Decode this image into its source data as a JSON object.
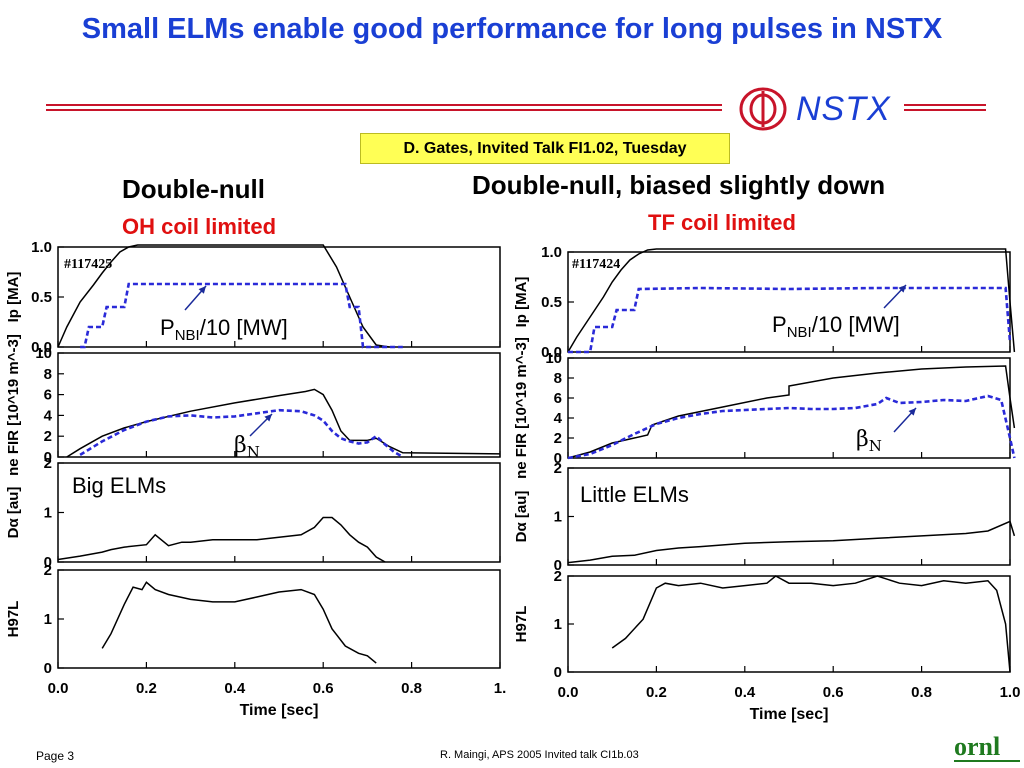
{
  "slide": {
    "title": "Small ELMs enable good performance for long pulses in NSTX",
    "logo_text": "NSTX",
    "citation": "D. Gates, Invited Talk FI1.02, Tuesday",
    "footer_left": "Page 3",
    "footer_center": "R. Maingi, APS 2005  Invited talk CI1b.03",
    "footer_logo": "ornl",
    "accent_color": "#1a3fd4",
    "rule_color": "#c8142a",
    "highlight_color": "#ffff55"
  },
  "left_heading": {
    "line1": "Double-null",
    "line2": "OH coil limited"
  },
  "right_heading": {
    "line1": "Double-null, biased slightly down",
    "line2": "TF coil limited"
  },
  "chart_data": [
    {
      "type": "line",
      "shot": "#117425",
      "xlabel": "Time [sec]",
      "xlim": [
        0,
        1.0
      ],
      "xticks": [
        "0.0",
        "0.2",
        "0.4",
        "0.6",
        "0.8",
        "1."
      ],
      "panels": [
        {
          "ylabel": "Ip [MA]",
          "ylim": [
            0,
            1.0
          ],
          "yticks": [
            "0.0",
            "0.5",
            "1.0"
          ],
          "annotation": "PNBI/10 [MW]",
          "series": [
            {
              "style": "solid",
              "x": [
                0.0,
                0.02,
                0.05,
                0.08,
                0.1,
                0.12,
                0.14,
                0.16,
                0.18,
                0.2,
                0.25,
                0.3,
                0.4,
                0.5,
                0.55,
                0.6,
                0.63,
                0.66,
                0.69,
                0.72,
                0.75
              ],
              "y": [
                0.0,
                0.2,
                0.45,
                0.62,
                0.74,
                0.85,
                0.95,
                1.0,
                1.02,
                1.02,
                1.02,
                1.02,
                1.02,
                1.02,
                1.02,
                1.02,
                0.8,
                0.5,
                0.2,
                0.02,
                0.0
              ]
            },
            {
              "style": "dashed",
              "x": [
                0.05,
                0.06,
                0.07,
                0.1,
                0.11,
                0.15,
                0.16,
                0.64,
                0.65,
                0.66,
                0.68,
                0.69,
                0.7,
                0.78
              ],
              "y": [
                0.0,
                0.0,
                0.2,
                0.2,
                0.4,
                0.4,
                0.63,
                0.63,
                0.63,
                0.4,
                0.4,
                0.0,
                0.0,
                0.0
              ]
            }
          ]
        },
        {
          "ylabel": "ne FIR [10^19 m^-3]",
          "ylim": [
            0,
            10
          ],
          "yticks": [
            "0",
            "2",
            "4",
            "6",
            "8",
            "10"
          ],
          "annotation": "βN",
          "series": [
            {
              "style": "solid",
              "x": [
                0.02,
                0.05,
                0.1,
                0.15,
                0.2,
                0.3,
                0.4,
                0.5,
                0.56,
                0.58,
                0.6,
                0.62,
                0.64,
                0.66,
                0.7,
                0.72,
                0.75,
                0.78,
                1.0
              ],
              "y": [
                0.0,
                0.8,
                2.0,
                2.8,
                3.4,
                4.4,
                5.2,
                5.9,
                6.3,
                6.5,
                6.0,
                4.5,
                2.5,
                1.6,
                1.6,
                1.8,
                1.0,
                0.4,
                0.3
              ]
            },
            {
              "style": "dashed",
              "x": [
                0.05,
                0.1,
                0.15,
                0.2,
                0.25,
                0.3,
                0.35,
                0.4,
                0.45,
                0.5,
                0.55,
                0.58,
                0.6,
                0.62,
                0.64,
                0.66,
                0.68,
                0.7,
                0.72,
                0.74,
                0.76,
                0.78
              ],
              "y": [
                0.2,
                1.5,
                2.6,
                3.4,
                3.9,
                4.0,
                3.8,
                3.9,
                4.2,
                4.5,
                4.4,
                4.0,
                3.5,
                2.5,
                1.8,
                1.5,
                1.3,
                1.4,
                2.0,
                1.2,
                0.5,
                0.0
              ]
            }
          ]
        },
        {
          "ylabel": "Dα [au]",
          "ylim": [
            0,
            2
          ],
          "yticks": [
            "0",
            "1",
            "2"
          ],
          "annotation": "Big ELMs",
          "series": [
            {
              "style": "solid",
              "x": [
                0.0,
                0.05,
                0.1,
                0.12,
                0.15,
                0.2,
                0.22,
                0.25,
                0.28,
                0.3,
                0.35,
                0.4,
                0.45,
                0.5,
                0.55,
                0.58,
                0.6,
                0.62,
                0.64,
                0.66,
                0.68,
                0.7,
                0.72,
                0.74
              ],
              "y": [
                0.05,
                0.12,
                0.2,
                0.25,
                0.3,
                0.35,
                0.55,
                0.33,
                0.4,
                0.4,
                0.45,
                0.45,
                0.45,
                0.5,
                0.55,
                0.7,
                0.9,
                0.9,
                0.75,
                0.55,
                0.4,
                0.3,
                0.1,
                0.0
              ]
            }
          ]
        },
        {
          "ylabel": "H97L",
          "ylim": [
            0,
            2
          ],
          "yticks": [
            "0",
            "1",
            "2"
          ],
          "series": [
            {
              "style": "solid",
              "x": [
                0.1,
                0.12,
                0.15,
                0.17,
                0.19,
                0.2,
                0.22,
                0.25,
                0.3,
                0.35,
                0.4,
                0.45,
                0.5,
                0.55,
                0.58,
                0.6,
                0.62,
                0.65,
                0.68,
                0.7,
                0.72
              ],
              "y": [
                0.4,
                0.7,
                1.3,
                1.65,
                1.6,
                1.75,
                1.6,
                1.5,
                1.4,
                1.35,
                1.35,
                1.45,
                1.55,
                1.6,
                1.5,
                1.2,
                0.8,
                0.45,
                0.3,
                0.25,
                0.1
              ]
            }
          ]
        }
      ]
    },
    {
      "type": "line",
      "shot": "#117424",
      "xlabel": "Time [sec]",
      "xlim": [
        0,
        1.0
      ],
      "xticks": [
        "0.0",
        "0.2",
        "0.4",
        "0.6",
        "0.8",
        "1.0"
      ],
      "panels": [
        {
          "ylabel": "Ip [MA]",
          "ylim": [
            0,
            1.0
          ],
          "yticks": [
            "0.0",
            "0.5",
            "1.0"
          ],
          "annotation": "PNBI/10 [MW]",
          "series": [
            {
              "style": "solid",
              "x": [
                0.0,
                0.02,
                0.05,
                0.08,
                0.1,
                0.12,
                0.14,
                0.16,
                0.18,
                0.2,
                0.3,
                0.5,
                0.7,
                0.9,
                0.99,
                1.0,
                1.01
              ],
              "y": [
                0.0,
                0.15,
                0.35,
                0.55,
                0.7,
                0.82,
                0.92,
                0.98,
                1.02,
                1.03,
                1.03,
                1.03,
                1.03,
                1.03,
                1.03,
                0.5,
                0.0
              ]
            },
            {
              "style": "dashed",
              "x": [
                0.0,
                0.05,
                0.06,
                0.1,
                0.11,
                0.15,
                0.16,
                0.3,
                0.5,
                0.7,
                0.9,
                0.99,
                1.0
              ],
              "y": [
                0.0,
                0.0,
                0.25,
                0.25,
                0.42,
                0.42,
                0.63,
                0.64,
                0.63,
                0.64,
                0.64,
                0.64,
                0.1
              ]
            }
          ]
        },
        {
          "ylabel": "ne FIR [10^19 m^-3]",
          "ylim": [
            0,
            10
          ],
          "yticks": [
            "0",
            "2",
            "4",
            "6",
            "8",
            "10"
          ],
          "annotation": "βN",
          "series": [
            {
              "style": "solid",
              "x": [
                0.0,
                0.05,
                0.1,
                0.15,
                0.18,
                0.19,
                0.25,
                0.35,
                0.45,
                0.5,
                0.5,
                0.6,
                0.7,
                0.8,
                0.9,
                0.99,
                1.0,
                1.01
              ],
              "y": [
                0.0,
                0.6,
                1.5,
                2.0,
                2.3,
                3.3,
                4.2,
                5.1,
                6.0,
                6.3,
                7.2,
                8.0,
                8.5,
                8.9,
                9.1,
                9.2,
                6.0,
                3.0
              ]
            },
            {
              "style": "dashed",
              "x": [
                0.0,
                0.05,
                0.1,
                0.15,
                0.2,
                0.25,
                0.3,
                0.35,
                0.4,
                0.45,
                0.5,
                0.55,
                0.6,
                0.65,
                0.7,
                0.72,
                0.75,
                0.8,
                0.85,
                0.9,
                0.95,
                0.98,
                1.0,
                1.01
              ],
              "y": [
                0.0,
                0.4,
                1.3,
                2.4,
                3.4,
                4.0,
                4.4,
                4.7,
                4.8,
                4.9,
                5.0,
                4.9,
                4.9,
                5.0,
                5.4,
                6.0,
                5.5,
                5.6,
                5.8,
                5.7,
                6.2,
                5.8,
                2.0,
                0.0
              ]
            }
          ]
        },
        {
          "ylabel": "Dα [au]",
          "ylim": [
            0,
            2
          ],
          "yticks": [
            "0",
            "1",
            "2"
          ],
          "annotation": "Little ELMs",
          "series": [
            {
              "style": "solid",
              "x": [
                0.0,
                0.05,
                0.1,
                0.15,
                0.2,
                0.25,
                0.3,
                0.4,
                0.5,
                0.6,
                0.7,
                0.8,
                0.9,
                0.95,
                1.0,
                1.01
              ],
              "y": [
                0.05,
                0.1,
                0.18,
                0.2,
                0.3,
                0.35,
                0.38,
                0.45,
                0.48,
                0.5,
                0.55,
                0.6,
                0.65,
                0.7,
                0.9,
                0.6
              ]
            }
          ]
        },
        {
          "ylabel": "H97L",
          "ylim": [
            0,
            2
          ],
          "yticks": [
            "0",
            "1",
            "2"
          ],
          "series": [
            {
              "style": "solid",
              "x": [
                0.1,
                0.13,
                0.17,
                0.2,
                0.22,
                0.25,
                0.3,
                0.35,
                0.4,
                0.45,
                0.47,
                0.5,
                0.55,
                0.6,
                0.65,
                0.7,
                0.75,
                0.8,
                0.85,
                0.9,
                0.95,
                0.97,
                0.99,
                1.0
              ],
              "y": [
                0.5,
                0.7,
                1.1,
                1.75,
                1.85,
                1.8,
                1.85,
                1.75,
                1.8,
                1.85,
                2.0,
                1.85,
                1.85,
                1.8,
                1.85,
                2.0,
                1.85,
                1.8,
                1.9,
                1.85,
                1.9,
                1.7,
                1.0,
                0.0
              ]
            }
          ]
        }
      ]
    }
  ]
}
